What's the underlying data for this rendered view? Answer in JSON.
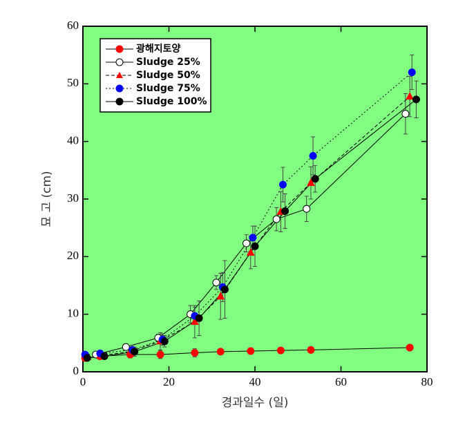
{
  "chart_data": {
    "type": "line",
    "x_label": "경과일수 (일)",
    "y_label": "묘 고 (cm)",
    "xlim": [
      0,
      80
    ],
    "xticks": [
      0,
      20,
      40,
      60,
      80
    ],
    "ylim": [
      0,
      60
    ],
    "yticks": [
      0,
      10,
      20,
      30,
      40,
      50,
      60
    ],
    "background": "#80ff80",
    "legend": "upper left",
    "series": [
      {
        "name": "광해지토양",
        "color": "#ff0000",
        "marker": "circle-filled",
        "line_style": "solid",
        "x": [
          0.5,
          4,
          11,
          18,
          26,
          32,
          39,
          46,
          53,
          76
        ],
        "values": [
          2.4,
          2.7,
          3.0,
          3.0,
          3.3,
          3.5,
          3.6,
          3.7,
          3.8,
          4.2
        ],
        "errors": [
          0.4,
          0.4,
          0.6,
          0.7,
          0.7,
          0.4,
          0.5,
          0.5,
          0.5,
          0.5
        ]
      },
      {
        "name": "Sludge 25%",
        "color": "#000000",
        "marker": "circle-open",
        "line_style": "solid",
        "x": [
          3,
          10,
          17.5,
          25,
          31,
          38,
          45,
          52,
          75
        ],
        "values": [
          3.0,
          4.3,
          5.9,
          10,
          15.5,
          22.3,
          26.5,
          28.3,
          44.8
        ],
        "errors": [
          0.4,
          0.5,
          0.6,
          1.5,
          1.2,
          1.5,
          2.0,
          2.2,
          3.5
        ]
      },
      {
        "name": "Sludge 50%",
        "color": "#ff0000",
        "marker": "triangle",
        "line_style": "dashed",
        "x": [
          1,
          4,
          11,
          18,
          26,
          32,
          39,
          46,
          53,
          76
        ],
        "values": [
          2.6,
          2.8,
          3.5,
          5.3,
          8.7,
          13.1,
          20.7,
          27.8,
          32.8,
          47.8
        ],
        "errors": [
          0.4,
          0.5,
          0.8,
          1.5,
          2.8,
          4.0,
          2.8,
          3.5,
          2.8,
          3.5
        ]
      },
      {
        "name": "Sludge 75%",
        "color": "#0000ff",
        "marker": "circle-filled",
        "line_style": "dotted",
        "x": [
          0.5,
          4,
          11.5,
          18.5,
          26,
          32.5,
          39.5,
          46.5,
          53.5,
          76.5
        ],
        "values": [
          3.0,
          3.2,
          3.8,
          5.6,
          9.7,
          14.7,
          23.3,
          32.5,
          37.5,
          52
        ],
        "errors": [
          0.4,
          0.4,
          0.8,
          1.0,
          1.5,
          2.5,
          2.0,
          3.0,
          3.3,
          3.0
        ]
      },
      {
        "name": "Sludge 100%",
        "color": "#000000",
        "marker": "circle-filled",
        "line_style": "solid",
        "x": [
          1,
          5,
          12,
          19,
          27,
          33,
          40,
          47,
          54,
          77.5
        ],
        "values": [
          2.4,
          2.7,
          3.5,
          5.3,
          9.3,
          14.3,
          21.8,
          27.9,
          33.5,
          47.3
        ],
        "errors": [
          0.4,
          0.5,
          0.8,
          1.0,
          3.0,
          5.0,
          3.5,
          3.0,
          2.3,
          3.2
        ]
      }
    ]
  }
}
